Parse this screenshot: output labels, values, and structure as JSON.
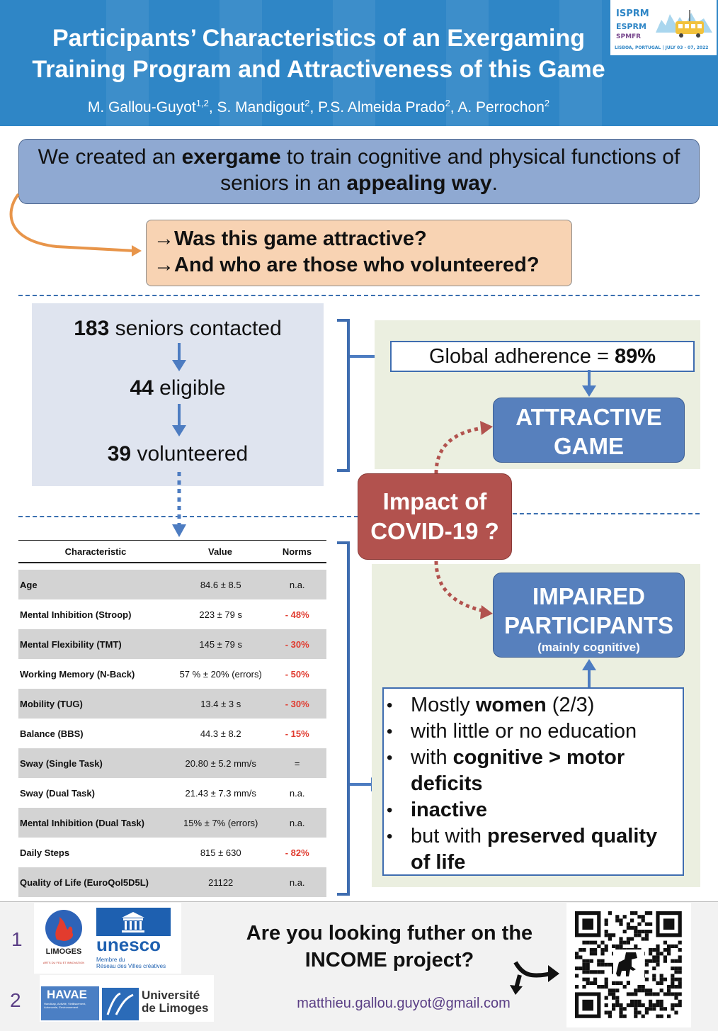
{
  "header": {
    "title_line1": "Participants’ Characteristics of an Exergaming",
    "title_line2": "Training Program and Attractiveness of this Game",
    "authors": [
      {
        "name": "M. Gallou-Guyot",
        "sup": "1,2",
        "sep": ", "
      },
      {
        "name": "S. Mandigout",
        "sup": "2",
        "sep": ", "
      },
      {
        "name": "P.S. Almeida Prado",
        "sup": "2",
        "sep": ", "
      },
      {
        "name": "A. Perrochon",
        "sup": "2",
        "sep": ""
      }
    ],
    "conference_logo": {
      "lines": [
        "ISPRM",
        "ESPRM",
        "SPMFR"
      ],
      "footer": "LISBOA, PORTUGAL | JULY 03 - 07, 2022",
      "color": "#2f86c6"
    }
  },
  "intro": {
    "part1": "We created an ",
    "bold1": "exergame",
    "part2": " to train cognitive and physical functions of seniors in an ",
    "bold2": "appealing way",
    "part3": "."
  },
  "questions": {
    "arrow": "→",
    "q1": "Was this game attractive?",
    "q2": "And who are those who volunteered?"
  },
  "flow": {
    "contacted_num": "183",
    "contacted_text": " seniors contacted",
    "eligible_num": "44",
    "eligible_text": " eligible",
    "volunteered_num": "39",
    "volunteered_text": " volunteered"
  },
  "results": {
    "adherence_text": "Global adherence = ",
    "adherence_value": "89%",
    "attractive_line1": "ATTRACTIVE",
    "attractive_line2": "GAME",
    "covid_line1": "Impact of",
    "covid_line2": "COVID-19 ?",
    "impaired_line1": "IMPAIRED",
    "impaired_line2": "PARTICIPANTS",
    "impaired_sub": "(mainly cognitive)"
  },
  "bullets": [
    {
      "parts": [
        {
          "t": "Mostly ",
          "b": false
        },
        {
          "t": "women",
          "b": true
        },
        {
          "t": " (2/3)",
          "b": false
        }
      ]
    },
    {
      "parts": [
        {
          "t": "with little or no education",
          "b": false
        }
      ]
    },
    {
      "parts": [
        {
          "t": "with ",
          "b": false
        },
        {
          "t": "cognitive > motor deficits",
          "b": true
        }
      ]
    },
    {
      "parts": [
        {
          "t": "inactive",
          "b": true
        }
      ]
    },
    {
      "parts": [
        {
          "t": "but with ",
          "b": false
        },
        {
          "t": "preserved quality of life",
          "b": true
        }
      ]
    }
  ],
  "table": {
    "headers": [
      "Characteristic",
      "Value",
      "Norms"
    ],
    "rows": [
      {
        "characteristic": "Age",
        "value": "84.6 ± 8.5",
        "norm": "n.a.",
        "negative": false
      },
      {
        "characteristic": "Mental Inhibition (Stroop)",
        "value": "223 ± 79 s",
        "norm": "- 48%",
        "negative": true
      },
      {
        "characteristic": "Mental Flexibility (TMT)",
        "value": "145 ± 79 s",
        "norm": "- 30%",
        "negative": true
      },
      {
        "characteristic": "Working Memory (N-Back)",
        "value": "57 % ± 20% (errors)",
        "norm": "- 50%",
        "negative": true
      },
      {
        "characteristic": "Mobility (TUG)",
        "value": "13.4 ± 3 s",
        "norm": "- 30%",
        "negative": true
      },
      {
        "characteristic": "Balance (BBS)",
        "value": "44.3 ± 8.2",
        "norm": "- 15%",
        "negative": true
      },
      {
        "characteristic": "Sway (Single Task)",
        "value": "20.80 ± 5.2 mm/s",
        "norm": "=",
        "negative": false
      },
      {
        "characteristic": "Sway (Dual Task)",
        "value": "21.43 ± 7.3 mm/s",
        "norm": "n.a.",
        "negative": false
      },
      {
        "characteristic": "Mental Inhibition (Dual Task)",
        "value": "15% ± 7% (errors)",
        "norm": "n.a.",
        "negative": false
      },
      {
        "characteristic": "Daily Steps",
        "value": "815 ± 630",
        "norm": "- 82%",
        "negative": true
      },
      {
        "characteristic": "Quality of Life (EuroQol5D5L)",
        "value": "21122",
        "norm": "n.a.",
        "negative": false
      }
    ]
  },
  "footer": {
    "affil1": "1",
    "affil2": "2",
    "limoges_label": "LIMOGES",
    "limoges_sub": "ARTS DU FEU ET INNOVATION",
    "unesco_label": "unesco",
    "unesco_sub1": "Membre du",
    "unesco_sub2": "Réseau des Villes créatives",
    "havae_label": "HAVAE",
    "havae_sub": "Handicap, Activité, Vieillissement, Autonomie, Environnement",
    "univ_line1": "Université",
    "univ_line2": "de Limoges",
    "cta_line1": "Are you looking futher on the",
    "cta_line2": "INCOME project?",
    "email": "matthieu.gallou.guyot@gmail.com"
  },
  "colors": {
    "header_blue": "#2f86c6",
    "intro_box": "#8fa9d2",
    "question_box": "#f8d3b3",
    "accent_blue": "#5780bd",
    "covid_red": "#b2524e",
    "negative_red": "#e03a2e",
    "arrow_orange": "#e8954a"
  }
}
